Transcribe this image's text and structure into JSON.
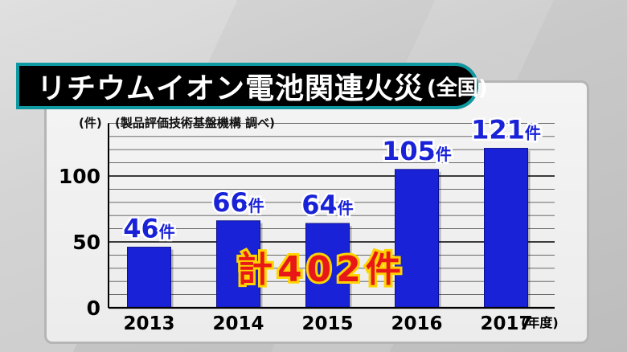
{
  "title": {
    "main": "リチウムイオン電池関連火災",
    "sub": "(全国)"
  },
  "source": "(製品評価技術基盤機構 調べ)",
  "total_label": "計402件",
  "colors": {
    "bar": "#1a22d8",
    "label": "#1a22d8",
    "total": "#e81818",
    "total_outline": "#ffd400",
    "title_border": "#0f9aa3"
  },
  "chart_data": {
    "type": "bar",
    "categories": [
      "2013",
      "2014",
      "2015",
      "2016",
      "2017"
    ],
    "values": [
      46,
      66,
      64,
      105,
      121
    ],
    "data_labels": [
      "46件",
      "66件",
      "64件",
      "105件",
      "121件"
    ],
    "ylabel": "(件)",
    "xlabel": "(年度)",
    "yticks": [
      0,
      50,
      100
    ],
    "ylim": [
      0,
      140
    ],
    "grid": true
  }
}
